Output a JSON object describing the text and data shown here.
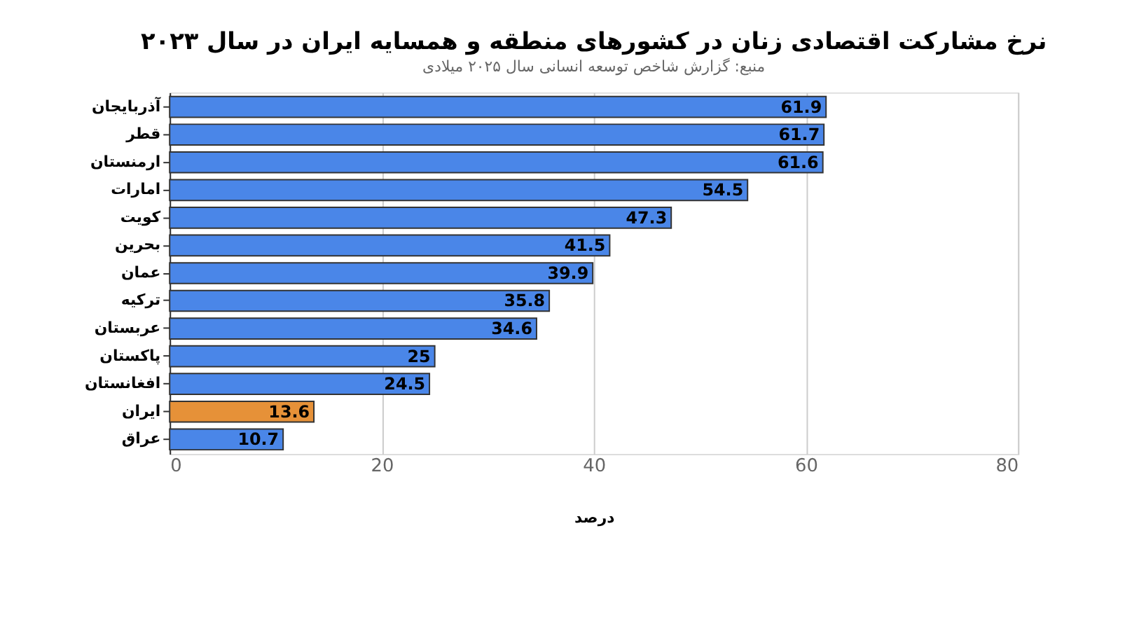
{
  "chart_data": {
    "type": "bar",
    "orientation": "horizontal",
    "title": "نرخ مشارکت اقتصادی زنان در کشورهای منطقه و همسایه ایران در سال ۲۰۲۳",
    "subtitle": "منبع: گزارش شاخص توسعه انسانی سال ۲۰۲۵ میلادی",
    "xlabel": "درصد",
    "categories": [
      "آذربایجان",
      "قطر",
      "ارمنستان",
      "امارات",
      "کویت",
      "بحرین",
      "عمان",
      "ترکیه",
      "عربستان",
      "پاکستان",
      "افغانستان",
      "ایران",
      "عراق"
    ],
    "values": [
      61.9,
      61.7,
      61.6,
      54.5,
      47.3,
      41.5,
      39.9,
      35.8,
      34.6,
      25,
      24.5,
      13.6,
      10.7
    ],
    "colors": [
      "#4a86e8",
      "#4a86e8",
      "#4a86e8",
      "#4a86e8",
      "#4a86e8",
      "#4a86e8",
      "#4a86e8",
      "#4a86e8",
      "#4a86e8",
      "#4a86e8",
      "#4a86e8",
      "#e69138",
      "#4a86e8"
    ],
    "xlim": [
      0,
      80
    ],
    "xticks": [
      0,
      20,
      40,
      60,
      80
    ],
    "grid": "x",
    "data_labels": true
  }
}
